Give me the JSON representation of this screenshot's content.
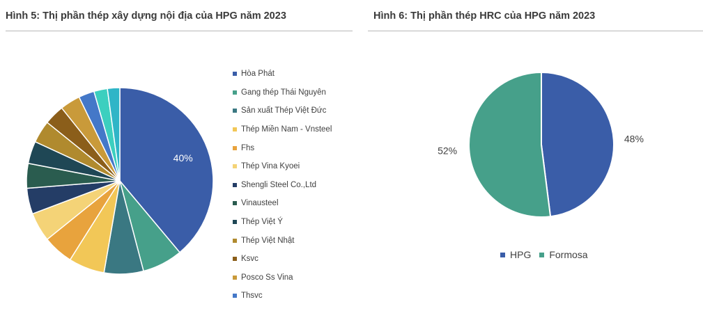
{
  "chart_data": [
    {
      "type": "pie",
      "title_label": "Hình 5:",
      "title_text": "Thị phần thép xây dựng nội địa của HPG năm 2023",
      "categories": [
        "Hòa Phát",
        "Gang thép Thái Nguyên",
        "Sản xuất Thép Việt Đức",
        "Thép Miền Nam - Vnsteel",
        "Fhs",
        "Thép Vina Kyoei",
        "Shengli Steel Co.,Ltd",
        "Vinausteel",
        "Thép Việt Ý",
        "Thép Việt Nhật",
        "Ksvc",
        "Posco Ss Vina",
        "Thsvc"
      ],
      "values": [
        40,
        7.2,
        7,
        6.4,
        5.4,
        5.2,
        4.6,
        4.4,
        4,
        4,
        3.6,
        3.6,
        2.8
      ],
      "colors": [
        "#3a5da8",
        "#46a08a",
        "#3a7882",
        "#f2c757",
        "#e8a33d",
        "#f4d377",
        "#243d66",
        "#2a5c4f",
        "#1f4755",
        "#b08a2e",
        "#8b5e1a",
        "#c99a3a",
        "#4478c8"
      ],
      "extra_slices": [
        {
          "value": 2.4,
          "color": "#3ccfbf"
        },
        {
          "value": 2.2,
          "color": "#2fb5c7"
        }
      ],
      "data_labels": [
        "40%"
      ],
      "legend_position": "right"
    },
    {
      "type": "pie",
      "title_label": "Hình 6:",
      "title_text": "Thị phần thép HRC của HPG năm 2023",
      "categories": [
        "HPG",
        "Formosa"
      ],
      "values": [
        48,
        52
      ],
      "colors": [
        "#3a5da8",
        "#46a08a"
      ],
      "data_labels": [
        "48%",
        "52%"
      ],
      "legend_position": "bottom"
    }
  ]
}
